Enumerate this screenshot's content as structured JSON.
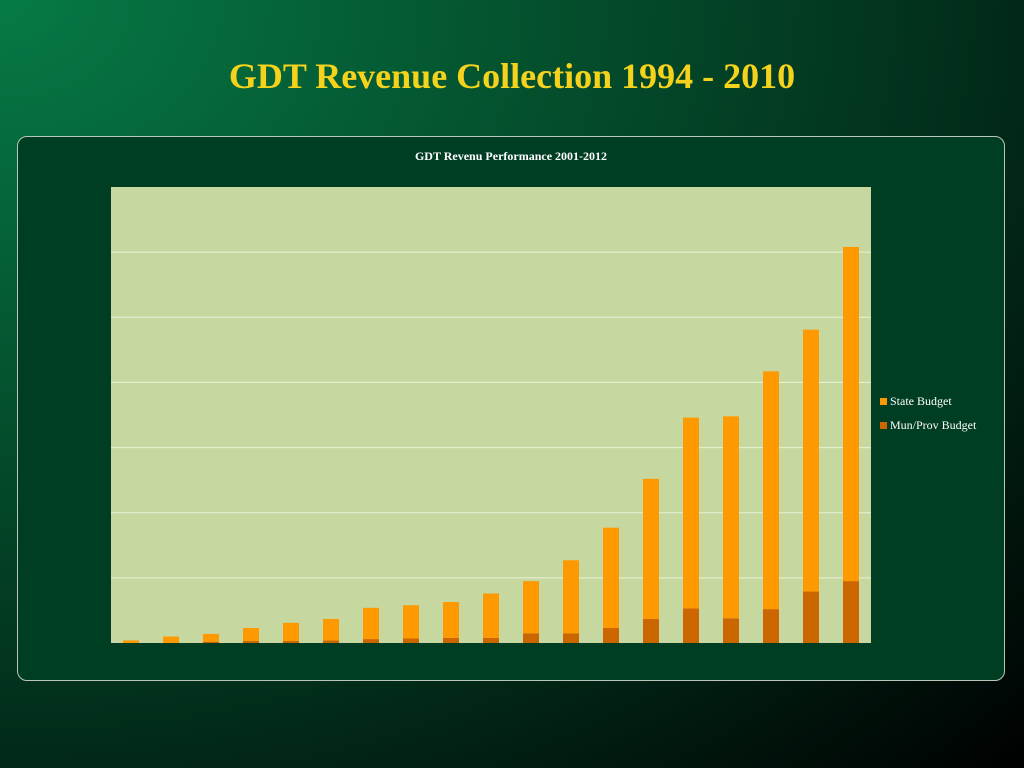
{
  "slide": {
    "title": "GDT Revenue Collection 1994 - 2010"
  },
  "chart_data": {
    "type": "bar",
    "stacked": true,
    "title": "GDT Revenu Performance 2001-2012",
    "xlabel": "",
    "ylabel": "",
    "grid": true,
    "legend_position": "right",
    "categories": [
      "",
      "",
      "",
      "",
      "",
      "",
      "",
      "",
      "",
      "",
      "",
      "",
      "",
      "",
      "",
      "",
      "",
      "",
      ""
    ],
    "ylim": [
      0,
      7
    ],
    "series": [
      {
        "name": "Mun/Prov Budget",
        "color": "#cc6600",
        "values": [
          0.0,
          0.0,
          0.02,
          0.03,
          0.03,
          0.04,
          0.06,
          0.07,
          0.08,
          0.08,
          0.15,
          0.15,
          0.23,
          0.37,
          0.53,
          0.38,
          0.52,
          0.79,
          0.95
        ]
      },
      {
        "name": "State Budget",
        "color": "#ff9900",
        "values": [
          0.04,
          0.1,
          0.12,
          0.2,
          0.28,
          0.33,
          0.48,
          0.51,
          0.55,
          0.68,
          0.8,
          1.12,
          1.54,
          2.15,
          2.93,
          3.1,
          3.65,
          4.02,
          5.13
        ]
      }
    ]
  }
}
